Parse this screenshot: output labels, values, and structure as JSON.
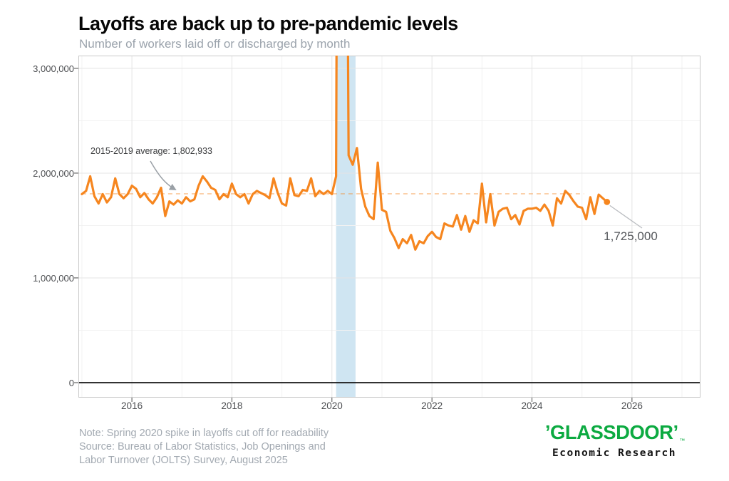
{
  "chart_data": {
    "type": "line",
    "title": "Layoffs are back up to pre-pandemic levels",
    "subtitle": "Number of workers laid off or discharged by month",
    "xlabel": "",
    "ylabel": "",
    "grid": "on",
    "legend": "none",
    "x_axis": {
      "range": [
        2014.93,
        2027.37
      ],
      "ticks": [
        {
          "value": 2016,
          "label": "2016"
        },
        {
          "value": 2018,
          "label": "2018"
        },
        {
          "value": 2020,
          "label": "2020"
        },
        {
          "value": 2022,
          "label": "2022"
        },
        {
          "value": 2024,
          "label": "2024"
        },
        {
          "value": 2026,
          "label": "2026"
        }
      ],
      "minor_ticks": [
        2015,
        2017,
        2019,
        2021,
        2023,
        2025,
        2027
      ]
    },
    "y_axis": {
      "range": [
        -143000,
        3122000
      ],
      "ticks": [
        {
          "value": 0,
          "label": "0"
        },
        {
          "value": 1000000,
          "label": "1,000,000"
        },
        {
          "value": 2000000,
          "label": "2,000,000"
        },
        {
          "value": 3000000,
          "label": "3,000,000"
        }
      ],
      "minor_ticks": [
        500000,
        1500000,
        2500000
      ]
    },
    "series": [
      {
        "name": "Workers laid off or discharged per month",
        "color": "#f6861f",
        "start": "2015-01",
        "frequency": "monthly",
        "values": [
          1800000,
          1830000,
          1970000,
          1780000,
          1710000,
          1800000,
          1720000,
          1770000,
          1950000,
          1800000,
          1760000,
          1800000,
          1880000,
          1850000,
          1770000,
          1810000,
          1750000,
          1710000,
          1770000,
          1860000,
          1590000,
          1730000,
          1700000,
          1740000,
          1710000,
          1770000,
          1730000,
          1750000,
          1880000,
          1970000,
          1920000,
          1860000,
          1840000,
          1750000,
          1800000,
          1770000,
          1900000,
          1800000,
          1770000,
          1800000,
          1710000,
          1800000,
          1830000,
          1810000,
          1790000,
          1760000,
          1950000,
          1810000,
          1710000,
          1690000,
          1950000,
          1790000,
          1780000,
          1840000,
          1830000,
          1950000,
          1780000,
          1830000,
          1800000,
          1830000,
          1800000,
          1970000,
          13000000,
          9000000,
          2170000,
          2080000,
          2240000,
          1850000,
          1680000,
          1590000,
          1560000,
          2100000,
          1650000,
          1630000,
          1450000,
          1380000,
          1285000,
          1370000,
          1330000,
          1410000,
          1270000,
          1350000,
          1330000,
          1400000,
          1440000,
          1390000,
          1370000,
          1520000,
          1500000,
          1490000,
          1600000,
          1460000,
          1590000,
          1440000,
          1550000,
          1520000,
          1900000,
          1530000,
          1800000,
          1500000,
          1630000,
          1660000,
          1670000,
          1560000,
          1600000,
          1510000,
          1640000,
          1660000,
          1660000,
          1670000,
          1640000,
          1700000,
          1640000,
          1500000,
          1760000,
          1710000,
          1830000,
          1790000,
          1730000,
          1680000,
          1670000,
          1560000,
          1770000,
          1610000,
          1795000,
          1760000,
          1725000
        ]
      }
    ],
    "average_line": {
      "value": 1802933,
      "span_years": [
        2015.0,
        2025.04
      ],
      "style": "dashed",
      "color": "#f6861f"
    },
    "recession_band": {
      "from": "2020-02",
      "to": "2020-04",
      "color": "#cfe5f2"
    },
    "end_point": {
      "date": "2025-07",
      "value": 1725000
    },
    "annotations": {
      "average_line_label": "2015-2019 average: 1,802,933",
      "latest_value_label": "1,725,000"
    }
  },
  "footer": {
    "note_lines": [
      "Note: Spring 2020 spike in layoffs cut off for readability",
      "Source: Bureau of Labor Statistics, Job Openings and",
      "Labor Turnover (JOLTS) Survey, August 2025"
    ],
    "logo": {
      "open_mark": "’",
      "wordmark": "GLASSDOOR",
      "close_mark": "’",
      "trademark": "™",
      "tagline": "Economic Research",
      "brand_color": "#0caa41"
    }
  }
}
